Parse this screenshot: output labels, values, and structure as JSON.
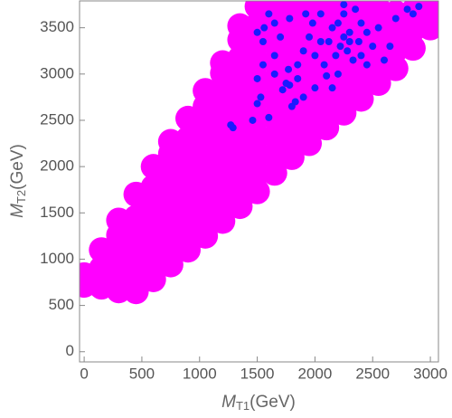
{
  "chart_data": {
    "type": "scatter",
    "xlabel": {
      "symbol": "M",
      "subscript": "T1",
      "unit": "(GeV)"
    },
    "ylabel": {
      "symbol": "M",
      "subscript": "T2",
      "unit": "(GeV)"
    },
    "xlim": [
      -40,
      3070
    ],
    "ylim": [
      -110,
      3790
    ],
    "xticks": [
      0,
      500,
      1000,
      1500,
      2000,
      2500,
      3000
    ],
    "yticks": [
      0,
      500,
      1000,
      1500,
      2000,
      2500,
      3000,
      3500
    ],
    "series": [
      {
        "color": "#ff00ff",
        "x": [
          0,
          0,
          150,
          150,
          150,
          300,
          300,
          300,
          300,
          300,
          450,
          450,
          450,
          450,
          450,
          450,
          600,
          600,
          600,
          600,
          600,
          600,
          600,
          750,
          750,
          750,
          750,
          750,
          750,
          750,
          750,
          900,
          900,
          900,
          900,
          900,
          900,
          900,
          900,
          1050,
          1050,
          1050,
          1050,
          1050,
          1050,
          1050,
          1050,
          1050,
          1200,
          1200,
          1200,
          1200,
          1200,
          1200,
          1200,
          1200,
          1200,
          1200,
          1350,
          1350,
          1350,
          1350,
          1350,
          1350,
          1350,
          1350,
          1350,
          1350,
          1350,
          1500,
          1500,
          1500,
          1500,
          1500,
          1500,
          1500,
          1500,
          1500,
          1500,
          1500,
          1650,
          1650,
          1650,
          1650,
          1650,
          1650,
          1650,
          1650,
          1650,
          1650,
          1800,
          1800,
          1800,
          1800,
          1800,
          1800,
          1800,
          1800,
          1800,
          1950,
          1950,
          1950,
          1950,
          1950,
          1950,
          1950,
          1950,
          1950,
          2100,
          2100,
          2100,
          2100,
          2100,
          2100,
          2100,
          2100,
          2250,
          2250,
          2250,
          2250,
          2250,
          2250,
          2250,
          2400,
          2400,
          2400,
          2400,
          2400,
          2400,
          2550,
          2550,
          2550,
          2550,
          2550,
          2700,
          2700,
          2700,
          2700,
          2850,
          2850,
          2850,
          3000,
          3000
        ],
        "values": [
          720,
          830,
          700,
          900,
          1100,
          660,
          860,
          1060,
          1260,
          1420,
          650,
          850,
          1050,
          1250,
          1450,
          1700,
          780,
          980,
          1180,
          1380,
          1580,
          1780,
          2000,
          940,
          1140,
          1340,
          1540,
          1740,
          1940,
          2140,
          2270,
          1100,
          1300,
          1500,
          1700,
          1900,
          2100,
          2300,
          2520,
          1250,
          1450,
          1650,
          1850,
          2050,
          2250,
          2450,
          2650,
          2820,
          1410,
          1610,
          1810,
          2010,
          2210,
          2410,
          2610,
          2810,
          3010,
          3120,
          1570,
          1770,
          1970,
          2170,
          2370,
          2570,
          2770,
          2970,
          3170,
          3370,
          3520,
          1730,
          1930,
          2130,
          2330,
          2530,
          2730,
          2930,
          3130,
          3330,
          3530,
          3730,
          1930,
          2130,
          2330,
          2530,
          2730,
          2930,
          3130,
          3330,
          3530,
          3730,
          2100,
          2300,
          2500,
          2700,
          2900,
          3100,
          3300,
          3500,
          3700,
          2250,
          2450,
          2650,
          2850,
          3050,
          3250,
          3450,
          3650,
          3780,
          2420,
          2620,
          2820,
          3020,
          3220,
          3420,
          3620,
          3780,
          2580,
          2780,
          2980,
          3180,
          3380,
          3580,
          3780,
          2730,
          2930,
          3130,
          3330,
          3530,
          3730,
          2900,
          3100,
          3300,
          3500,
          3700,
          3060,
          3260,
          3460,
          3660,
          3280,
          3480,
          3680,
          3500,
          3700
        ]
      },
      {
        "color": "#1a1aff",
        "x": [
          1270,
          1290,
          1460,
          1500,
          1530,
          1500,
          1600,
          1550,
          1550,
          1500,
          1560,
          1650,
          1700,
          1650,
          1720,
          1750,
          1780,
          1800,
          1830,
          1850,
          1770,
          1850,
          1900,
          1950,
          1980,
          1920,
          2000,
          2050,
          2080,
          2100,
          2150,
          2200,
          2180,
          2220,
          2250,
          2280,
          2300,
          2330,
          2200,
          2250,
          2150,
          2380,
          2400,
          2450,
          2500,
          2550,
          2450,
          2600,
          2650,
          2700,
          2800,
          2850,
          2900,
          2350,
          2250,
          2050,
          1780,
          1600,
          1650,
          2000,
          1900,
          2120,
          2300,
          2400
        ],
        "values": [
          2450,
          2420,
          2500,
          2680,
          2750,
          2950,
          2530,
          3100,
          3350,
          3450,
          3500,
          3550,
          3400,
          3200,
          2830,
          2900,
          2880,
          2650,
          2700,
          2950,
          3050,
          3100,
          3250,
          3400,
          3550,
          3650,
          3200,
          3350,
          3100,
          2980,
          2850,
          3000,
          3200,
          3300,
          3400,
          3250,
          3350,
          3150,
          3550,
          3650,
          3500,
          3350,
          3200,
          3100,
          3300,
          3500,
          3450,
          3150,
          3300,
          3600,
          3700,
          3650,
          3730,
          3700,
          3750,
          3650,
          3600,
          3650,
          3000,
          2850,
          2750,
          3350,
          3450,
          3550
        ]
      }
    ]
  }
}
